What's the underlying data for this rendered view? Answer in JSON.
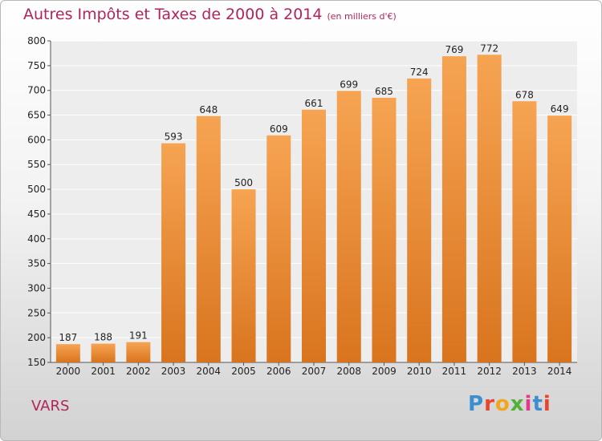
{
  "header": {
    "title": "Autres Impôts et Taxes de 2000 à 2014",
    "subtitle": "(en milliers d'€)"
  },
  "footer": {
    "place": "VARS",
    "logo": "Proxiti"
  },
  "colors": {
    "title": "#b0245c",
    "bar_light": "#f6a452",
    "bar_dark": "#d9741e"
  },
  "chart_data": {
    "type": "bar",
    "categories": [
      "2000",
      "2001",
      "2002",
      "2003",
      "2004",
      "2005",
      "2006",
      "2007",
      "2008",
      "2009",
      "2010",
      "2011",
      "2012",
      "2013",
      "2014"
    ],
    "values": [
      187,
      188,
      191,
      593,
      648,
      500,
      609,
      661,
      699,
      685,
      724,
      769,
      772,
      678,
      649
    ],
    "ylim": [
      150,
      800
    ],
    "yticks": [
      150,
      200,
      250,
      300,
      350,
      400,
      450,
      500,
      550,
      600,
      650,
      700,
      750,
      800
    ],
    "grid": true,
    "data_labels": true
  }
}
